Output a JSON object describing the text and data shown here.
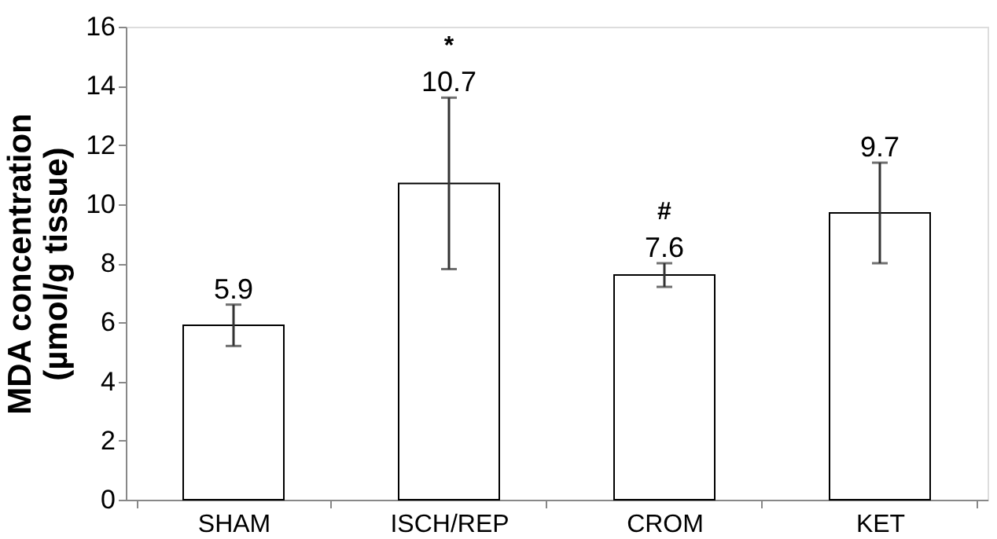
{
  "chart_data": {
    "type": "bar",
    "ylabel": "MDA concentration\n(µmol/g tissue)",
    "categories": [
      "SHAM",
      "ISCH/REP",
      "CROM",
      "KET"
    ],
    "values": [
      5.9,
      10.7,
      7.6,
      9.7
    ],
    "errors": [
      0.7,
      2.9,
      0.4,
      1.7
    ],
    "color": "#ffffff",
    "data_labels": true,
    "ylim": [
      0,
      16
    ],
    "yticks": [
      0,
      2,
      4,
      6,
      8,
      10,
      12,
      14,
      16
    ],
    "grid": false,
    "annotations": [
      "*",
      "#"
    ]
  }
}
